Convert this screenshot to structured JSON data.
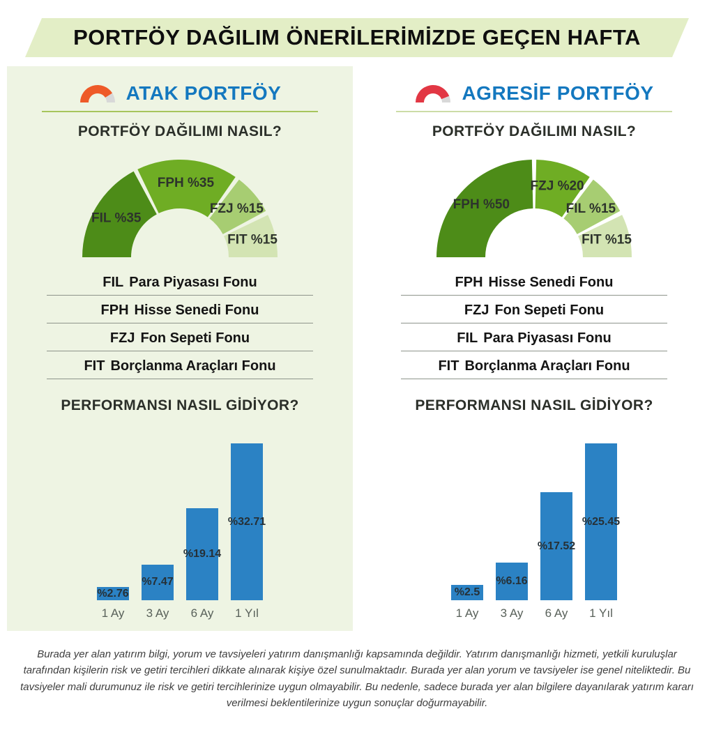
{
  "title": "PORTFÖY DAĞILIM ÖNERİLERİMİZDE GEÇEN HAFTA",
  "colors": {
    "banner_bg": "#e3eec6",
    "panel_bg": "#eef4e3",
    "title_blue": "#1478bf",
    "divider_strong": "#a6c55c",
    "divider_soft": "#ccdca6",
    "bar_blue": "#2b82c4",
    "donut_palette": [
      "#4d8c18",
      "#6fad24",
      "#a7cd72",
      "#d3e4b3"
    ],
    "gauge_orange": "#ee5a28",
    "gauge_red": "#e23744",
    "gauge_track": "#d8d8d8"
  },
  "columns": [
    {
      "name": "ATAK PORTFÖY",
      "gauge": {
        "color": "#ee5a28",
        "percent": 82
      },
      "distribution_title": "PORTFÖY DAĞILIMI NASIL?",
      "performance_title": "PERFORMANSI NASIL GİDİYOR?",
      "funds": [
        {
          "code": "FIL",
          "name": "Para Piyasası Fonu"
        },
        {
          "code": "FPH",
          "name": "Hisse Senedi Fonu"
        },
        {
          "code": "FZJ",
          "name": "Fon Sepeti Fonu"
        },
        {
          "code": "FIT",
          "name": "Borçlanma Araçları Fonu"
        }
      ]
    },
    {
      "name": "AGRESİF PORTFÖY",
      "gauge": {
        "color": "#e23744",
        "percent": 88
      },
      "distribution_title": "PORTFÖY DAĞILIMI NASIL?",
      "performance_title": "PERFORMANSI NASIL GİDİYOR?",
      "funds": [
        {
          "code": "FPH",
          "name": "Hisse Senedi Fonu"
        },
        {
          "code": "FZJ",
          "name": "Fon Sepeti Fonu"
        },
        {
          "code": "FIL",
          "name": "Para Piyasası Fonu"
        },
        {
          "code": "FIT",
          "name": "Borçlanma Araçları Fonu"
        }
      ]
    }
  ],
  "chart_data": [
    {
      "type": "pie",
      "variant": "semi-donut",
      "portfolio": "ATAK PORTFÖY",
      "title": "PORTFÖY DAĞILIMI NASIL?",
      "labels": [
        "FIL",
        "FPH",
        "FZJ",
        "FIT"
      ],
      "values": [
        35,
        35,
        15,
        15
      ],
      "unit": "%",
      "segment_labels": [
        "FIL %35",
        "FPH %35",
        "FZJ %15",
        "FIT %15"
      ],
      "colors": [
        "#4d8c18",
        "#6fad24",
        "#a7cd72",
        "#d3e4b3"
      ],
      "legend_position": "on-segments"
    },
    {
      "type": "pie",
      "variant": "semi-donut",
      "portfolio": "AGRESİF PORTFÖY",
      "title": "PORTFÖY DAĞILIMI NASIL?",
      "labels": [
        "FPH",
        "FZJ",
        "FIL",
        "FIT"
      ],
      "values": [
        50,
        20,
        15,
        15
      ],
      "unit": "%",
      "segment_labels": [
        "FPH %50",
        "FZJ %20",
        "FIL %15",
        "FIT %15"
      ],
      "colors": [
        "#4d8c18",
        "#6fad24",
        "#a7cd72",
        "#d3e4b3"
      ],
      "legend_position": "on-segments"
    },
    {
      "type": "bar",
      "portfolio": "ATAK PORTFÖY",
      "title": "PERFORMANSI NASIL GİDİYOR?",
      "categories": [
        "1 Ay",
        "3 Ay",
        "6 Ay",
        "1 Yıl"
      ],
      "values": [
        2.76,
        7.47,
        19.14,
        32.71
      ],
      "unit": "%",
      "value_labels": [
        "%2.76",
        "%7.47",
        "%19.14",
        "%32.71"
      ],
      "bar_color": "#2b82c4",
      "ylim": [
        0,
        33
      ],
      "grid": false,
      "legend_position": "none"
    },
    {
      "type": "bar",
      "portfolio": "AGRESİF PORTFÖY",
      "title": "PERFORMANSI NASIL GİDİYOR?",
      "categories": [
        "1 Ay",
        "3 Ay",
        "6 Ay",
        "1 Yıl"
      ],
      "values": [
        2.5,
        6.16,
        17.52,
        25.45
      ],
      "unit": "%",
      "value_labels": [
        "%2.5",
        "%6.16",
        "%17.52",
        "%25.45"
      ],
      "bar_color": "#2b82c4",
      "ylim": [
        0,
        26
      ],
      "grid": false,
      "legend_position": "none"
    }
  ],
  "disclaimer": "Burada yer alan yatırım bilgi, yorum ve tavsiyeleri yatırım danışmanlığı kapsamında değildir. Yatırım danışmanlığı hizmeti, yetkili kuruluşlar tarafından kişilerin risk ve getiri tercihleri dikkate alınarak kişiye özel sunulmaktadır. Burada yer alan yorum ve tavsiyeler ise genel niteliktedir. Bu tavsiyeler mali durumunuz ile risk ve getiri tercihlerinize uygun olmayabilir. Bu nedenle, sadece burada yer alan bilgilere dayanılarak yatırım kararı verilmesi beklentilerinize uygun sonuçlar doğurmayabilir."
}
